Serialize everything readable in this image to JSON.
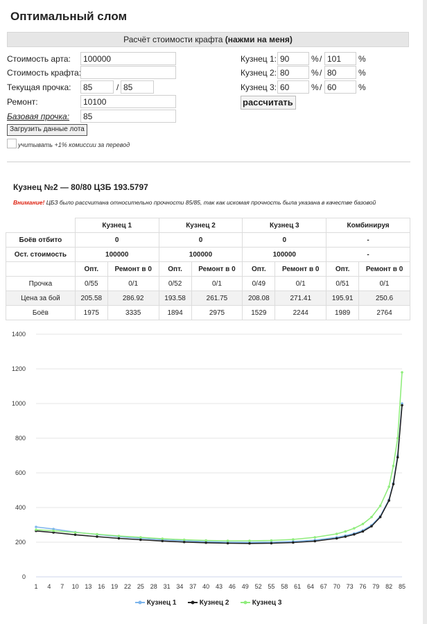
{
  "title": "Оптимальный слом",
  "calc_bar": {
    "text": "Расчёт стоимости крафта ",
    "bold": "(нажми на меня)"
  },
  "form": {
    "art_cost_label": "Стоимость арта:",
    "art_cost_value": "100000",
    "craft_cost_label": "Стоимость крафта:",
    "craft_cost_value": "",
    "durability_label": "Текущая прочка:",
    "durability_cur": "85",
    "durability_max": "85",
    "repair_label": "Ремонт:",
    "repair_value": "10100",
    "base_label": "Базовая прочка:",
    "base_value": "85",
    "smith1_label": "Кузнец 1:",
    "smith1_a": "90",
    "smith1_b": "101",
    "smith2_label": "Кузнец 2:",
    "smith2_a": "80",
    "smith2_b": "80",
    "smith3_label": "Кузнец 3:",
    "smith3_a": "60",
    "smith3_b": "60",
    "pct": "%",
    "slash": "/",
    "calc_button": "рассчитать",
    "load_button": "Загрузить данные лота",
    "commission_label": "учитывать +1% комиссии за перевод"
  },
  "result": {
    "title": "Кузнец №2 — 80/80 ЦЗБ 193.5797",
    "warning_bold": "Внимание!",
    "warning_text": " ЦБЗ было рассчитана относительно прочности 85/85, так как искомая прочность была указана в качестве базовой"
  },
  "table": {
    "groups": [
      "Кузнец 1",
      "Кузнец 2",
      "Кузнец 3",
      "Комбинируя"
    ],
    "fights_label": "Боёв отбито",
    "fights": [
      "0",
      "0",
      "0",
      "-"
    ],
    "rest_label": "Ост. стоимость",
    "rest": [
      "100000",
      "100000",
      "100000",
      "-"
    ],
    "sub_headers": [
      "Опт.",
      "Ремонт в 0",
      "Опт.",
      "Ремонт в 0",
      "Опт.",
      "Ремонт в 0",
      "Опт.",
      "Ремонт в 0"
    ],
    "rows": [
      {
        "label": "Прочка",
        "values": [
          "0/55",
          "0/1",
          "0/52",
          "0/1",
          "0/49",
          "0/1",
          "0/51",
          "0/1"
        ]
      },
      {
        "label": "Цена за бой",
        "values": [
          "205.58",
          "286.92",
          "193.58",
          "261.75",
          "208.08",
          "271.41",
          "195.91",
          "250.6"
        ]
      },
      {
        "label": "Боёв",
        "values": [
          "1975",
          "3335",
          "1894",
          "2975",
          "1529",
          "2244",
          "1989",
          "2764"
        ]
      }
    ]
  },
  "chart_data": {
    "type": "line",
    "x_ticks": [
      "1",
      "4",
      "7",
      "10",
      "13",
      "16",
      "19",
      "22",
      "25",
      "28",
      "31",
      "34",
      "37",
      "40",
      "43",
      "46",
      "49",
      "52",
      "55",
      "58",
      "61",
      "64",
      "67",
      "70",
      "73",
      "76",
      "79",
      "82",
      "85"
    ],
    "y_ticks": [
      "0",
      "200",
      "400",
      "600",
      "800",
      "1000",
      "1200",
      "1400"
    ],
    "ylim": [
      0,
      1400
    ],
    "xlim": [
      1,
      85
    ],
    "grid": true,
    "legend_position": "bottom",
    "series": [
      {
        "name": "Кузнец 1",
        "color": "#7cb5ec",
        "marker": "circle",
        "x": [
          1,
          5,
          10,
          15,
          20,
          25,
          30,
          35,
          40,
          45,
          50,
          55,
          60,
          65,
          70,
          72,
          74,
          76,
          78,
          80,
          82,
          83,
          84,
          85
        ],
        "y": [
          288,
          276,
          258,
          244,
          232,
          222,
          214,
          208,
          203,
          200,
          199,
          200,
          204,
          212,
          228,
          238,
          250,
          268,
          298,
          350,
          445,
          540,
          700,
          1000
        ]
      },
      {
        "name": "Кузнец 2",
        "color": "#222222",
        "marker": "circle",
        "x": [
          1,
          5,
          10,
          15,
          20,
          25,
          30,
          35,
          40,
          45,
          50,
          55,
          60,
          65,
          70,
          72,
          74,
          76,
          78,
          80,
          82,
          83,
          84,
          85
        ],
        "y": [
          265,
          256,
          243,
          232,
          222,
          214,
          207,
          201,
          197,
          194,
          193,
          194,
          198,
          206,
          222,
          232,
          245,
          262,
          292,
          345,
          440,
          535,
          690,
          990
        ]
      },
      {
        "name": "Кузнец 3",
        "color": "#90ed7d",
        "marker": "circle",
        "x": [
          1,
          5,
          10,
          15,
          20,
          25,
          30,
          35,
          40,
          45,
          50,
          55,
          60,
          65,
          70,
          72,
          74,
          76,
          78,
          80,
          82,
          83,
          84,
          85
        ],
        "y": [
          272,
          266,
          256,
          246,
          236,
          228,
          220,
          214,
          210,
          208,
          208,
          210,
          216,
          228,
          248,
          262,
          280,
          305,
          345,
          410,
          520,
          640,
          800,
          1180
        ]
      }
    ]
  }
}
